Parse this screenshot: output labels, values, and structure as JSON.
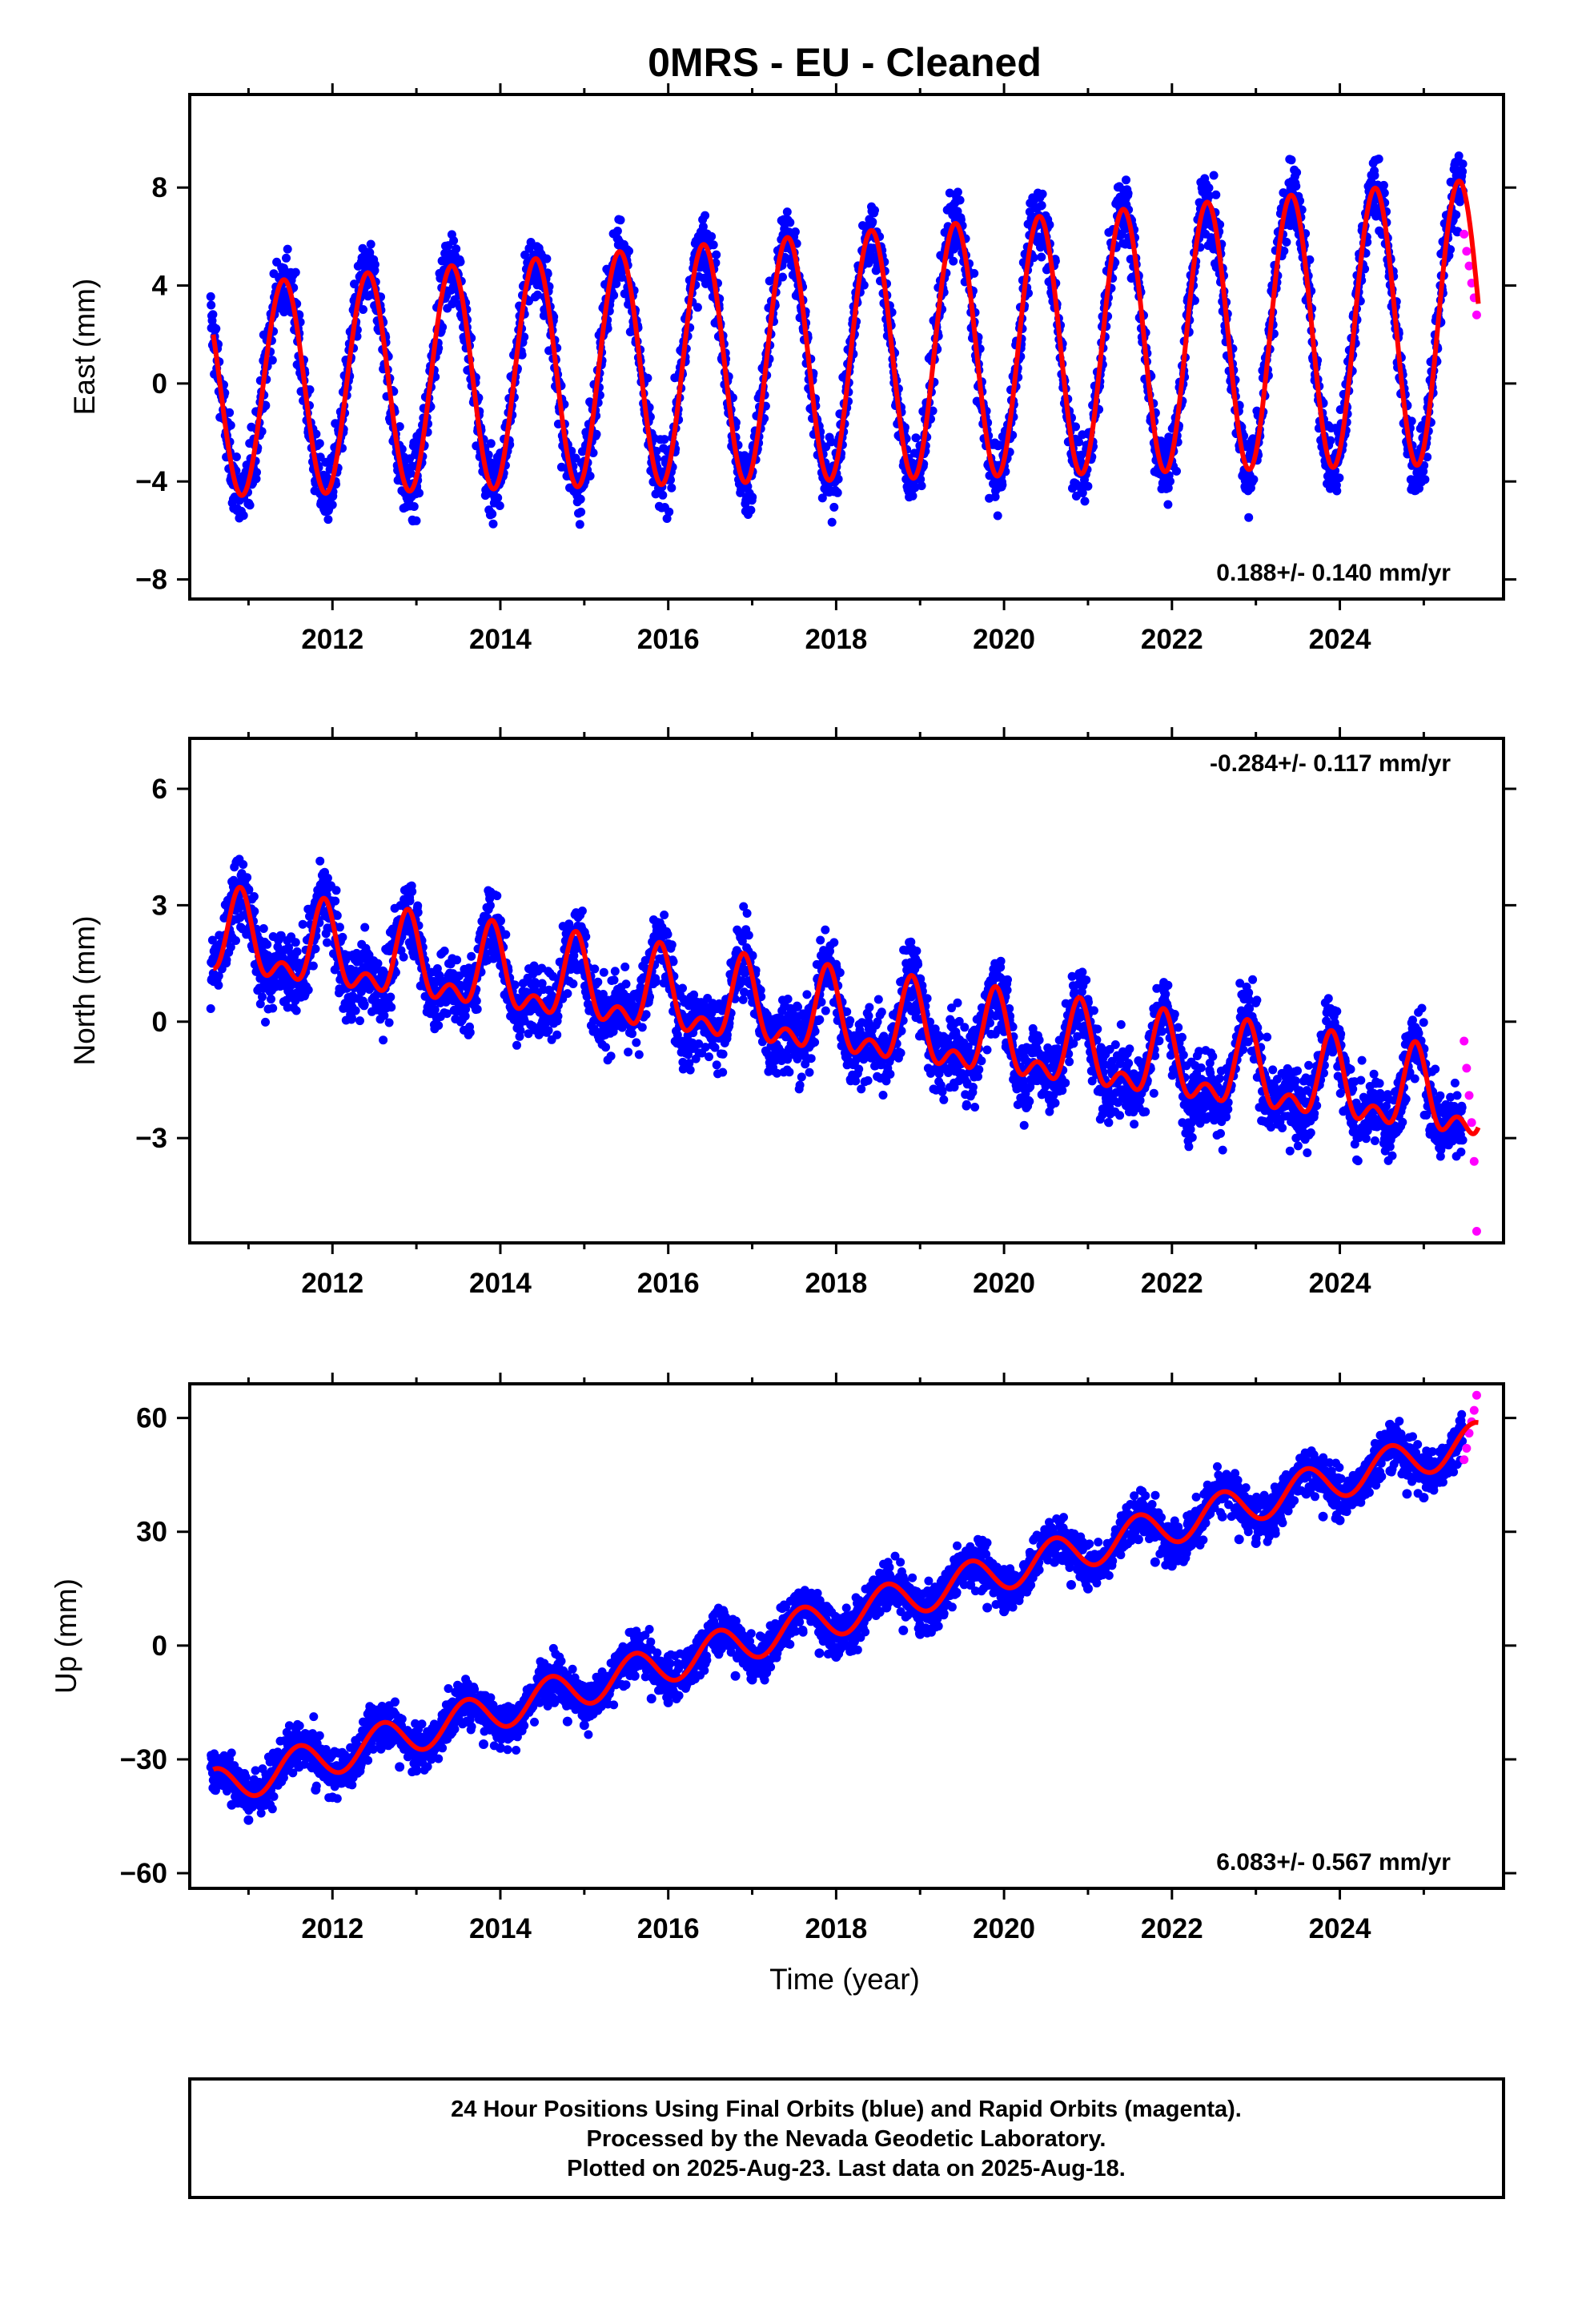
{
  "title": "0MRS  - EU - Cleaned",
  "xlabel": "Time (year)",
  "caption": {
    "line1": "24 Hour Positions Using Final Orbits (blue) and Rapid Orbits (magenta).",
    "line2": "Processed by the Nevada Geodetic Laboratory.",
    "line3": "Plotted on 2025-Aug-23. Last data on 2025-Aug-18."
  },
  "colors": {
    "final": "#0000ff",
    "rapid": "#ff00ff",
    "model": "#ff0000",
    "frame": "#000000"
  },
  "chart_data": [
    {
      "type": "scatter",
      "component": "East",
      "ylabel": "East (mm)",
      "rate_text": "0.188+/- 0.140 mm/yr",
      "xlim": [
        2010.3,
        2025.95
      ],
      "ylim": [
        -8.8,
        11.8
      ],
      "xticks": [
        "2012",
        "2014",
        "2016",
        "2018",
        "2020",
        "2022",
        "2024"
      ],
      "yticks": [
        "−8",
        "−4",
        "0",
        "4",
        "8"
      ],
      "series": [
        {
          "kind": "final_orbits",
          "x": [
            2010.6,
            2010.8,
            2011.0,
            2011.2,
            2011.4,
            2011.6,
            2011.8,
            2012.0,
            2012.2,
            2012.4,
            2012.6,
            2012.8,
            2013.0,
            2013.2,
            2013.4,
            2013.6,
            2013.8,
            2014.0,
            2014.2,
            2014.4,
            2014.6,
            2014.8,
            2015.0,
            2015.2,
            2015.4,
            2015.6,
            2015.8,
            2016.0,
            2016.2,
            2016.4,
            2016.6,
            2016.8,
            2017.0,
            2017.2,
            2017.4,
            2017.6,
            2017.8,
            2018.0,
            2018.2,
            2018.4,
            2018.6,
            2018.8,
            2019.0,
            2019.2,
            2019.4,
            2019.6,
            2019.8,
            2020.0,
            2020.2,
            2020.4,
            2020.6,
            2020.8,
            2021.0,
            2021.2,
            2021.4,
            2021.6,
            2021.8,
            2022.0,
            2022.2,
            2022.4,
            2022.6,
            2022.8,
            2023.0,
            2023.2,
            2023.4,
            2023.6,
            2023.8,
            2024.0,
            2024.2,
            2024.4,
            2024.6,
            2024.8,
            2025.0,
            2025.2,
            2025.4
          ],
          "y": [
            2.2,
            -3.8,
            -4.9,
            -0.9,
            4.1,
            2.8,
            -2.5,
            -4.6,
            0.3,
            4.2,
            2.5,
            -2.8,
            -4.2,
            0.4,
            4.3,
            2.6,
            -2.6,
            -4.0,
            0.6,
            4.5,
            2.8,
            -2.5,
            -3.9,
            0.8,
            4.7,
            3.0,
            -2.4,
            -3.8,
            0.9,
            4.9,
            3.2,
            -2.2,
            -3.6,
            1.0,
            5.1,
            3.4,
            -2.0,
            -3.4,
            1.2,
            5.3,
            3.6,
            -1.8,
            -3.2,
            1.4,
            5.5,
            3.8,
            -1.6,
            -3.0,
            1.6,
            5.8,
            4.1,
            -1.4,
            -2.8,
            1.9,
            6.1,
            4.4,
            -1.2,
            -2.6,
            2.1,
            6.6,
            4.7,
            -0.9,
            -2.5,
            2.4,
            7.2,
            5.0,
            -0.8,
            -2.4,
            2.6,
            7.0,
            5.1,
            -0.9,
            -2.2,
            2.5,
            6.2
          ]
        },
        {
          "kind": "rapid_orbits",
          "x": [
            2025.48,
            2025.51,
            2025.54,
            2025.57,
            2025.6,
            2025.63
          ],
          "y": [
            6.1,
            5.4,
            4.8,
            4.1,
            3.5,
            2.8
          ]
        }
      ],
      "model": {
        "rate": 0.188,
        "offset_at_2010_6": -0.3,
        "annual_amplitude": 4.3,
        "annual_amplitude_growth_per_yr": 0.1,
        "annual_peak_phase_yr": 0.42,
        "offset_at_2025_6": 2.0
      }
    },
    {
      "type": "scatter",
      "component": "North",
      "ylabel": "North (mm)",
      "rate_text": "-0.284+/- 0.117 mm/yr",
      "xlim": [
        2010.3,
        2025.95
      ],
      "ylim": [
        -5.7,
        7.3
      ],
      "xticks": [
        "2012",
        "2014",
        "2016",
        "2018",
        "2020",
        "2022",
        "2024"
      ],
      "yticks": [
        "−3",
        "0",
        "3",
        "6"
      ],
      "series": [
        {
          "kind": "final_orbits",
          "x": [
            2010.6,
            2010.8,
            2011.0,
            2011.2,
            2011.4,
            2011.6,
            2011.8,
            2012.0,
            2012.2,
            2012.4,
            2012.6,
            2012.8,
            2013.0,
            2013.2,
            2013.4,
            2013.6,
            2013.8,
            2014.0,
            2014.2,
            2014.4,
            2014.6,
            2014.8,
            2015.0,
            2015.2,
            2015.4,
            2015.6,
            2015.8,
            2016.0,
            2016.2,
            2016.4,
            2016.6,
            2016.8,
            2017.0,
            2017.2,
            2017.4,
            2017.6,
            2017.8,
            2018.0,
            2018.2,
            2018.4,
            2018.6,
            2018.8,
            2019.0,
            2019.2,
            2019.4,
            2019.6,
            2019.8,
            2020.0,
            2020.2,
            2020.4,
            2020.6,
            2020.8,
            2021.0,
            2021.2,
            2021.4,
            2021.6,
            2021.8,
            2022.0,
            2022.2,
            2022.4,
            2022.6,
            2022.8,
            2023.0,
            2023.2,
            2023.4,
            2023.6,
            2023.8,
            2024.0,
            2024.2,
            2024.4,
            2024.6,
            2024.8,
            2025.0,
            2025.2,
            2025.4
          ],
          "y": [
            1.6,
            2.6,
            3.4,
            1.5,
            1.4,
            1.5,
            2.2,
            3.1,
            1.2,
            1.3,
            1.3,
            2.1,
            2.8,
            0.9,
            1.0,
            0.9,
            1.8,
            2.6,
            0.6,
            0.7,
            0.6,
            1.6,
            2.3,
            0.3,
            0.4,
            0.3,
            1.3,
            2.0,
            0.0,
            0.1,
            0.0,
            1.0,
            1.7,
            -0.3,
            -0.2,
            -0.3,
            0.7,
            1.4,
            -0.6,
            -0.5,
            -0.6,
            0.4,
            1.1,
            -0.9,
            -0.8,
            -0.9,
            0.1,
            0.8,
            -1.2,
            -1.1,
            -1.2,
            -0.2,
            0.5,
            -1.5,
            -1.4,
            -1.5,
            -0.5,
            0.2,
            -1.8,
            -1.7,
            -1.8,
            -0.8,
            -0.1,
            -2.1,
            -2.0,
            -2.1,
            -1.1,
            -0.4,
            -2.4,
            -2.3,
            -2.4,
            -1.4,
            -0.7,
            -2.6,
            -2.5
          ]
        },
        {
          "kind": "rapid_orbits",
          "x": [
            2025.48,
            2025.51,
            2025.54,
            2025.57,
            2025.6,
            2025.63
          ],
          "y": [
            -0.5,
            -1.2,
            -1.9,
            -2.6,
            -3.6,
            -5.4
          ]
        }
      ],
      "model": {
        "rate": -0.284,
        "offset_at_2010_6": 2.1,
        "annual_amplitude": 0.9,
        "semiannual_amplitude": 0.55,
        "annual_peak_phase_yr": 0.9
      }
    },
    {
      "type": "scatter",
      "component": "Up",
      "ylabel": "Up (mm)",
      "rate_text": "6.083+/- 0.567 mm/yr",
      "xlim": [
        2010.3,
        2025.95
      ],
      "ylim": [
        -64,
        69
      ],
      "xticks": [
        "2012",
        "2014",
        "2016",
        "2018",
        "2020",
        "2022",
        "2024"
      ],
      "yticks": [
        "−60",
        "−30",
        "0",
        "30",
        "60"
      ],
      "series": [
        {
          "kind": "final_orbits",
          "x": [
            2010.6,
            2010.8,
            2011.0,
            2011.2,
            2011.4,
            2011.6,
            2011.8,
            2012.0,
            2012.2,
            2012.4,
            2012.6,
            2012.8,
            2013.0,
            2013.2,
            2013.4,
            2013.6,
            2013.8,
            2014.0,
            2014.2,
            2014.4,
            2014.6,
            2014.8,
            2015.0,
            2015.2,
            2015.4,
            2015.6,
            2015.8,
            2016.0,
            2016.2,
            2016.4,
            2016.6,
            2016.8,
            2017.0,
            2017.2,
            2017.4,
            2017.6,
            2017.8,
            2018.0,
            2018.2,
            2018.4,
            2018.6,
            2018.8,
            2019.0,
            2019.2,
            2019.4,
            2019.6,
            2019.8,
            2020.0,
            2020.2,
            2020.4,
            2020.6,
            2020.8,
            2021.0,
            2021.2,
            2021.4,
            2021.6,
            2021.8,
            2022.0,
            2022.2,
            2022.4,
            2022.6,
            2022.8,
            2023.0,
            2023.2,
            2023.4,
            2023.6,
            2023.8,
            2024.0,
            2024.2,
            2024.4,
            2024.6,
            2024.8,
            2025.0,
            2025.2,
            2025.4
          ],
          "y": [
            -38,
            -42,
            -46,
            -42,
            -33,
            -32,
            -38,
            -40,
            -36,
            -26,
            -26,
            -32,
            -33,
            -28,
            -20,
            -20,
            -26,
            -27,
            -22,
            -14,
            -14,
            -20,
            -21,
            -16,
            -8,
            -8,
            -14,
            -15,
            -10,
            -2,
            -2,
            -8,
            -9,
            -4,
            4,
            4,
            -2,
            -3,
            2,
            10,
            10,
            4,
            3,
            8,
            16,
            16,
            10,
            9,
            14,
            22,
            22,
            16,
            15,
            20,
            28,
            28,
            22,
            21,
            26,
            34,
            34,
            28,
            27,
            32,
            40,
            40,
            34,
            33,
            38,
            46,
            46,
            40,
            39,
            44,
            52
          ]
        },
        {
          "kind": "rapid_orbits",
          "x": [
            2025.48,
            2025.51,
            2025.54,
            2025.57,
            2025.6,
            2025.63
          ],
          "y": [
            49,
            52,
            56,
            59,
            62,
            66
          ]
        }
      ],
      "model": {
        "rate": 6.083,
        "offset_at_2010_6": -37.5,
        "annual_amplitude": 5.0,
        "annual_peak_phase_yr": 0.6
      }
    }
  ]
}
